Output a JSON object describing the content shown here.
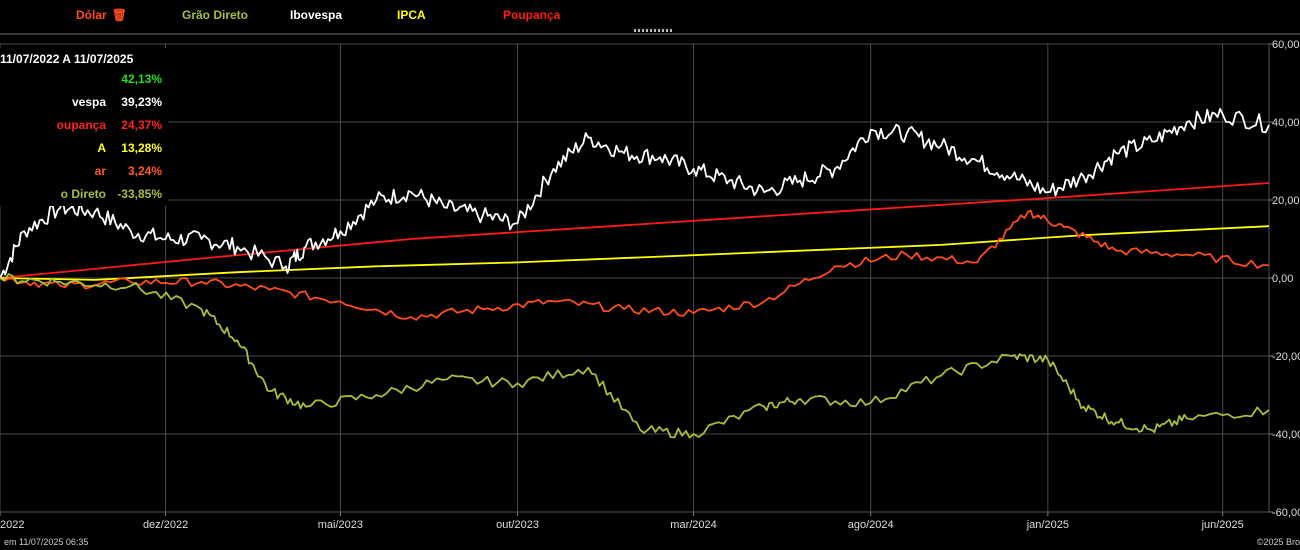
{
  "legend": [
    {
      "label": "Dólar",
      "color": "#ff4d1a",
      "has_trash_icon": true
    },
    {
      "label": "Grão Direto",
      "color": "#a5c03a"
    },
    {
      "label": "Ibovespa",
      "color": "#ffffff"
    },
    {
      "label": "IPCA",
      "color": "#ffff00"
    },
    {
      "label": "Poupança",
      "color": "#ff1a1a"
    }
  ],
  "summary": {
    "period": "11/07/2022 A 11/07/2025",
    "rows": [
      {
        "label": "",
        "value": "42,13%",
        "color": "#22dd22"
      },
      {
        "label": "vespa",
        "value": "39,23%",
        "color": "#ffffff"
      },
      {
        "label": "oupança",
        "value": "24,37%",
        "color": "#ff2222"
      },
      {
        "label": "A",
        "value": "13,28%",
        "color": "#ffff22"
      },
      {
        "label": "ar",
        "value": "3,24%",
        "color": "#ff5a1a"
      },
      {
        "label": "o Direto",
        "value": "-33,85%",
        "color": "#a5c03a"
      }
    ]
  },
  "footer": {
    "left": "em 11/07/2025 06:35",
    "right": "©2025 Bro"
  },
  "chart_data": {
    "type": "line",
    "x_start": "2022-07-11",
    "x_end": "2025-07-11",
    "x_tick_labels": [
      "2022",
      "dez/2022",
      "mai/2023",
      "out/2023",
      "mar/2024",
      "ago/2024",
      "jan/2025",
      "jun/2025"
    ],
    "y_tick_labels": [
      "60,00",
      "40,00",
      "20,00",
      "0,00",
      "-20,00",
      "-40,00",
      "-60,00"
    ],
    "ylim": [
      -60,
      60
    ],
    "grid": true,
    "series": [
      {
        "name": "Poupança",
        "color": "#ff1a1a",
        "x": [
          "2022-07-11",
          "2023-01-01",
          "2023-07-01",
          "2024-01-01",
          "2024-07-01",
          "2025-01-01",
          "2025-07-11"
        ],
        "values": [
          0,
          5,
          10,
          13.5,
          17,
          20.5,
          24.37
        ]
      },
      {
        "name": "IPCA",
        "color": "#ffff00",
        "x": [
          "2022-07-11",
          "2022-10-01",
          "2023-02-01",
          "2023-06-01",
          "2023-10-01",
          "2024-02-01",
          "2024-06-01",
          "2024-10-01",
          "2025-02-01",
          "2025-07-11"
        ],
        "values": [
          0,
          -0.5,
          1.5,
          3,
          4,
          5.5,
          7,
          8.5,
          11,
          13.28
        ]
      },
      {
        "name": "Ibovespa",
        "color": "#ffffff",
        "x": [
          "2022-07-11",
          "2022-08-01",
          "2022-09-01",
          "2022-10-01",
          "2022-11-01",
          "2022-12-01",
          "2023-01-01",
          "2023-02-01",
          "2023-03-15",
          "2023-04-01",
          "2023-05-01",
          "2023-06-01",
          "2023-07-01",
          "2023-08-01",
          "2023-09-01",
          "2023-10-01",
          "2023-11-01",
          "2023-12-01",
          "2024-01-01",
          "2024-02-01",
          "2024-03-01",
          "2024-04-01",
          "2024-05-01",
          "2024-06-01",
          "2024-07-01",
          "2024-08-01",
          "2024-09-01",
          "2024-10-01",
          "2024-11-01",
          "2024-12-01",
          "2025-01-01",
          "2025-02-01",
          "2025-03-01",
          "2025-04-01",
          "2025-05-01",
          "2025-06-01",
          "2025-07-11"
        ],
        "values": [
          0,
          12,
          18,
          17,
          12,
          10,
          10,
          8,
          3,
          8,
          12,
          20,
          22,
          18,
          16,
          14,
          28,
          36,
          32,
          31,
          28,
          25,
          22,
          25,
          28,
          38,
          37,
          34,
          30,
          26,
          22,
          26,
          32,
          35,
          40,
          42,
          39.23
        ]
      },
      {
        "name": "Dólar",
        "color": "#ff4d1a",
        "x": [
          "2022-07-11",
          "2022-09-01",
          "2022-11-01",
          "2023-01-01",
          "2023-03-01",
          "2023-05-01",
          "2023-07-01",
          "2023-09-01",
          "2023-11-01",
          "2024-01-01",
          "2024-03-01",
          "2024-05-01",
          "2024-07-01",
          "2024-09-01",
          "2024-11-01",
          "2024-12-15",
          "2025-01-15",
          "2025-03-01",
          "2025-05-01",
          "2025-07-11"
        ],
        "values": [
          0,
          -2,
          -1,
          -1,
          -3,
          -6,
          -10,
          -8,
          -6,
          -8,
          -9,
          -6,
          3,
          6,
          4,
          17,
          13,
          7,
          6,
          3.24
        ]
      },
      {
        "name": "Grão Direto",
        "color": "#a5c03a",
        "x": [
          "2022-07-11",
          "2022-09-01",
          "2022-11-01",
          "2023-01-01",
          "2023-02-01",
          "2023-03-01",
          "2023-04-01",
          "2023-06-01",
          "2023-08-01",
          "2023-10-01",
          "2023-12-01",
          "2024-01-15",
          "2024-03-01",
          "2024-05-01",
          "2024-06-01",
          "2024-08-01",
          "2024-10-01",
          "2024-12-01",
          "2025-01-01",
          "2025-02-01",
          "2025-03-01",
          "2025-04-01",
          "2025-05-01",
          "2025-07-11"
        ],
        "values": [
          0,
          -1,
          -2,
          -8,
          -16,
          -29,
          -33,
          -30,
          -26,
          -27,
          -23,
          -39,
          -40,
          -33,
          -31,
          -32,
          -25,
          -20,
          -21,
          -33,
          -37,
          -39,
          -36,
          -33.85
        ]
      }
    ]
  }
}
